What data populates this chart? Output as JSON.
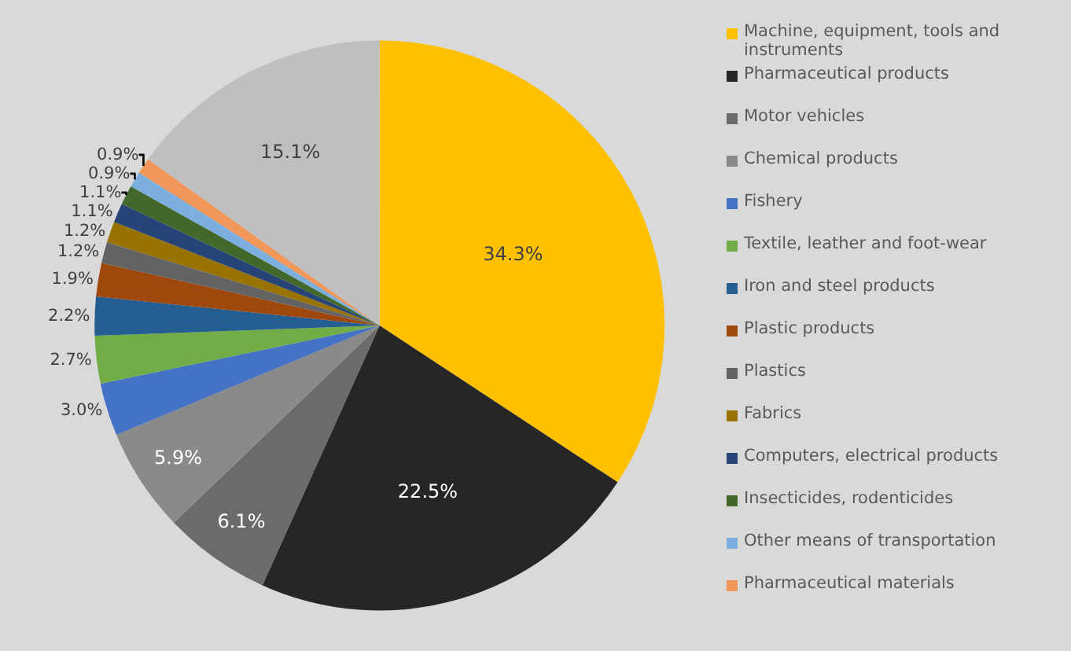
{
  "chart_data": {
    "type": "pie",
    "categories": [
      "Machine, equipment, tools and instruments",
      "Pharmaceutical products",
      "Motor vehicles",
      "Chemical products",
      "Fishery",
      "Textile, leather and foot-wear",
      "Iron and steel products",
      "Plastic products",
      "Plastics",
      "Fabrics",
      "Computers, electrical products",
      "Insecticides, rodenticides",
      "Other means of transportation",
      "Pharmaceutical materials",
      null
    ],
    "values": [
      34.3,
      22.5,
      6.1,
      5.9,
      3.0,
      2.7,
      2.2,
      1.9,
      1.2,
      1.2,
      1.1,
      1.1,
      0.9,
      0.9,
      15.1
    ],
    "value_labels": [
      "34.3%",
      "22.5%",
      "6.1%",
      "5.9%",
      "3.0%",
      "2.7%",
      "2.2%",
      "1.9%",
      "1.2%",
      "1.2%",
      "1.1%",
      "1.1%",
      "0.9%",
      "0.9%",
      "15.1%"
    ],
    "colors": [
      "#ffc000",
      "#262626",
      "#6b6b6b",
      "#8a8a8a",
      "#4472c4",
      "#70ad47",
      "#255e91",
      "#9e480e",
      "#636363",
      "#997300",
      "#264478",
      "#43682b",
      "#7cafdd",
      "#f1975a",
      "#bfbfbf"
    ],
    "legend": "right"
  }
}
